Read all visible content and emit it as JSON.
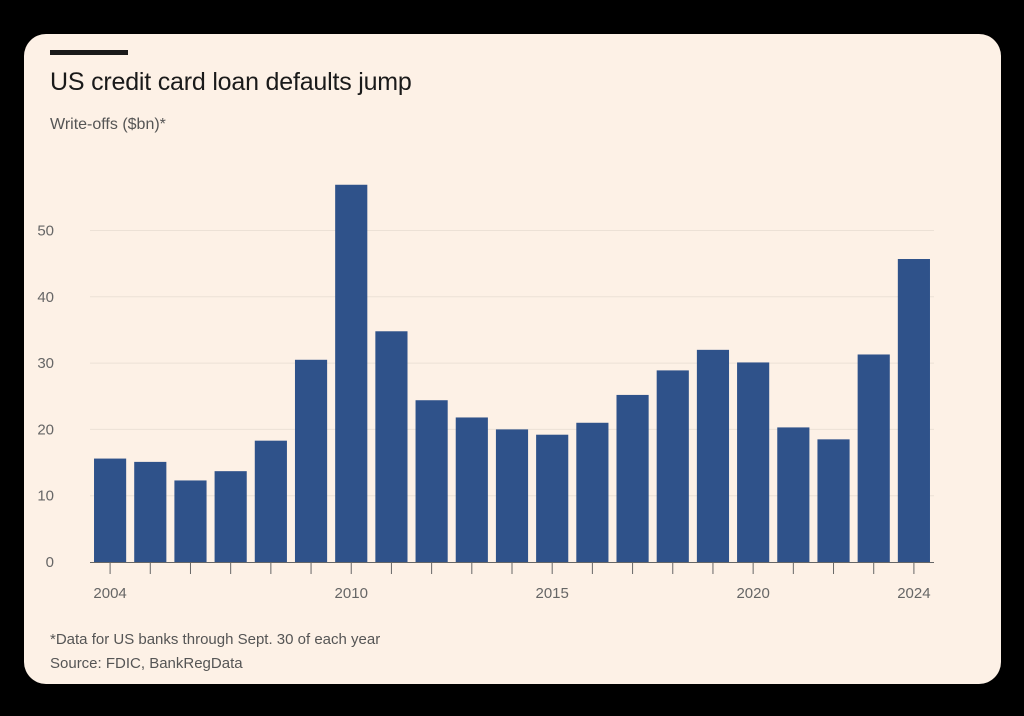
{
  "colors": {
    "background": "#000000",
    "card": "#fdf1e6",
    "bar": "#2f528a",
    "grid": "#ece1d6",
    "axis": "#666666",
    "text": "#1a1a1a"
  },
  "chart_data": {
    "type": "bar",
    "title": "US credit card loan defaults jump",
    "subtitle": "Write-offs ($bn)*",
    "xlabel": "",
    "ylabel": "",
    "x": [
      2004,
      2005,
      2006,
      2007,
      2008,
      2009,
      2010,
      2011,
      2012,
      2013,
      2014,
      2015,
      2016,
      2017,
      2018,
      2019,
      2020,
      2021,
      2022,
      2023,
      2024
    ],
    "values": [
      15.6,
      15.1,
      12.3,
      13.7,
      18.3,
      30.5,
      56.9,
      34.8,
      24.4,
      21.8,
      20.0,
      19.2,
      21.0,
      25.2,
      28.9,
      32.0,
      30.1,
      20.3,
      18.5,
      31.3,
      45.7
    ],
    "ylim": [
      0,
      60
    ],
    "yticks": [
      0,
      10,
      20,
      30,
      40,
      50
    ],
    "xticks": [
      2004,
      2010,
      2015,
      2020,
      2024
    ],
    "grid": true,
    "legend": "none",
    "footnote": "*Data for US banks through Sept. 30 of each year",
    "source": "Source: FDIC, BankRegData"
  }
}
